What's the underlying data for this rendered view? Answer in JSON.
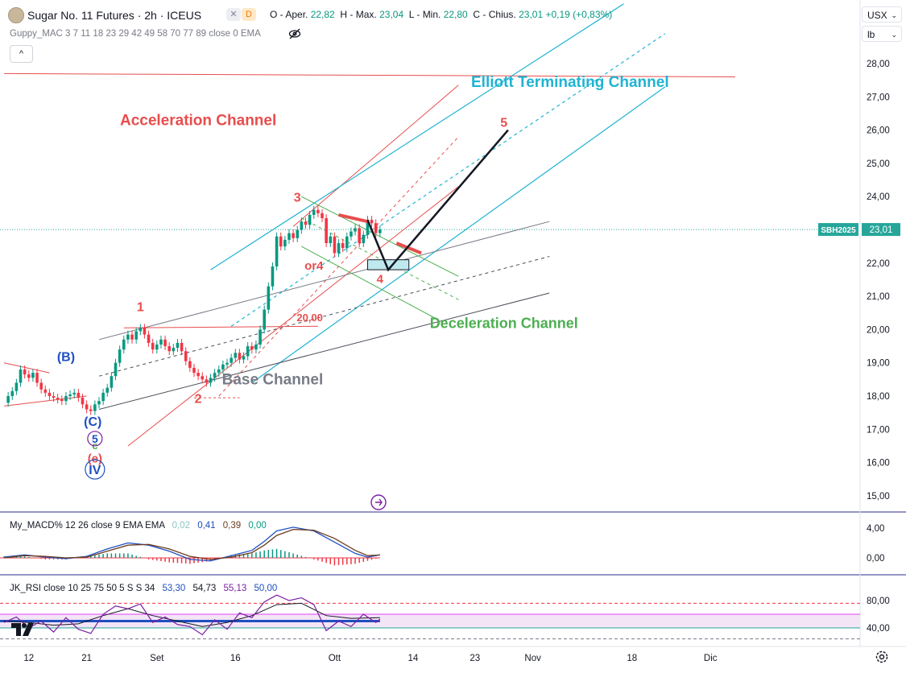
{
  "header": {
    "symbol_title": "Sugar No. 11 Futures · 2h · ICEUS",
    "flag_x": "✕",
    "flag_d": "D",
    "ohlc_open_label": "O - Aper.",
    "ohlc_open": "22,82",
    "ohlc_high_label": "H - Max.",
    "ohlc_high": "23,04",
    "ohlc_low_label": "L - Min.",
    "ohlc_low": "22,80",
    "ohlc_close_label": "C - Chius.",
    "ohlc_close": "23,01",
    "ohlc_change": "+0,19 (+0,83%)",
    "indicator": "Guppy_MAC 3 7 11 18 23 29 42 49 58 70 77 89 close 0 EMA",
    "collapse_icon": "^"
  },
  "selectors": {
    "currency": "USX",
    "unit": "lb",
    "chevron": "⌄"
  },
  "macd_pane": {
    "label": "My_MACD% 12 26 close 9 EMA EMA",
    "values": [
      "0,02",
      "0,41",
      "0,39",
      "0,00"
    ],
    "value_colors": [
      "#89c4bd",
      "#1e4fc2",
      "#6d3b1e",
      "#089981"
    ]
  },
  "rsi_pane": {
    "label": "JK_RSI close 10 25 75 50 5 S S 34",
    "values": [
      "53,30",
      "54,73",
      "55,13",
      "50,00"
    ],
    "value_colors": [
      "#1e4fc2",
      "#131722",
      "#7b1fa2",
      "#1e4fc2"
    ]
  },
  "colors": {
    "candle_up": "#089981",
    "candle_down": "#f23645",
    "accel": "#e84d4d",
    "elliott": "#1fb3d2",
    "decel": "#4caf50",
    "base": "#787b86",
    "wave_label": "#e84d4d",
    "blue_label": "#1e4fc2",
    "last_price": "#26a69a"
  },
  "chart_data": {
    "type": "candlestick",
    "title": "Sugar No. 11 Futures · 2h · ICEUS",
    "ylabel": "",
    "y_ticks": [
      "28,00",
      "27,00",
      "26,00",
      "25,00",
      "24,00",
      "23,00",
      "22,00",
      "21,00",
      "20,00",
      "19,00",
      "18,00",
      "17,00",
      "16,00",
      "15,00"
    ],
    "y_tick_values": [
      28,
      27,
      26,
      25,
      24,
      23,
      22,
      21,
      20,
      19,
      18,
      17,
      16,
      15
    ],
    "x_ticks": [
      "12",
      "21",
      "Set",
      "16",
      "Ott",
      "14",
      "23",
      "Nov",
      "18",
      "Dic"
    ],
    "x_tick_idx": [
      6,
      20,
      37,
      56,
      80,
      99,
      114,
      128,
      152,
      171
    ],
    "last_price": {
      "symbol": "SBH2025",
      "value": "23,01",
      "num": 23.01
    },
    "price_path": [
      [
        0,
        17.8
      ],
      [
        1,
        18.0
      ],
      [
        2,
        18.15
      ],
      [
        3,
        18.4
      ],
      [
        4,
        18.8
      ],
      [
        5,
        18.65
      ],
      [
        6,
        18.55
      ],
      [
        7,
        18.7
      ],
      [
        8,
        18.4
      ],
      [
        9,
        18.2
      ],
      [
        10,
        18.1
      ],
      [
        11,
        18.0
      ],
      [
        12,
        17.95
      ],
      [
        13,
        17.9
      ],
      [
        14,
        17.85
      ],
      [
        15,
        18.0
      ],
      [
        16,
        18.05
      ],
      [
        17,
        18.1
      ],
      [
        18,
        17.95
      ],
      [
        19,
        17.75
      ],
      [
        20,
        17.6
      ],
      [
        21,
        17.55
      ],
      [
        22,
        17.75
      ],
      [
        23,
        17.85
      ],
      [
        24,
        18.1
      ],
      [
        25,
        18.25
      ],
      [
        26,
        18.6
      ],
      [
        27,
        19.0
      ],
      [
        28,
        19.4
      ],
      [
        29,
        19.7
      ],
      [
        30,
        19.85
      ],
      [
        31,
        19.7
      ],
      [
        32,
        19.95
      ],
      [
        33,
        20.05
      ],
      [
        34,
        19.85
      ],
      [
        35,
        19.6
      ],
      [
        36,
        19.4
      ],
      [
        37,
        19.55
      ],
      [
        38,
        19.7
      ],
      [
        39,
        19.5
      ],
      [
        40,
        19.35
      ],
      [
        41,
        19.45
      ],
      [
        42,
        19.6
      ],
      [
        43,
        19.35
      ],
      [
        44,
        19.05
      ],
      [
        45,
        18.85
      ],
      [
        46,
        18.7
      ],
      [
        47,
        18.6
      ],
      [
        48,
        18.5
      ],
      [
        49,
        18.4
      ],
      [
        50,
        18.55
      ],
      [
        51,
        18.7
      ],
      [
        52,
        18.8
      ],
      [
        53,
        18.95
      ],
      [
        54,
        19.0
      ],
      [
        55,
        19.15
      ],
      [
        56,
        19.3
      ],
      [
        57,
        19.1
      ],
      [
        58,
        19.2
      ],
      [
        59,
        19.5
      ],
      [
        60,
        19.4
      ],
      [
        61,
        19.55
      ],
      [
        62,
        20.0
      ],
      [
        63,
        20.6
      ],
      [
        64,
        21.3
      ],
      [
        65,
        21.9
      ],
      [
        66,
        22.8
      ],
      [
        67,
        22.5
      ],
      [
        68,
        22.7
      ],
      [
        69,
        22.9
      ],
      [
        70,
        22.75
      ],
      [
        71,
        23.0
      ],
      [
        72,
        23.25
      ],
      [
        73,
        23.15
      ],
      [
        74,
        23.45
      ],
      [
        75,
        23.6
      ],
      [
        76,
        23.5
      ],
      [
        77,
        23.35
      ],
      [
        78,
        22.6
      ],
      [
        79,
        22.8
      ],
      [
        80,
        22.3
      ],
      [
        81,
        22.6
      ],
      [
        82,
        22.45
      ],
      [
        83,
        22.8
      ],
      [
        84,
        22.95
      ],
      [
        85,
        23.05
      ],
      [
        86,
        22.6
      ],
      [
        87,
        22.85
      ],
      [
        88,
        23.3
      ],
      [
        89,
        23.2
      ],
      [
        90,
        22.9
      ],
      [
        91,
        23.01
      ]
    ],
    "overlays": {
      "accel_upper": [
        [
          70,
          23.1
        ],
        [
          110,
          27.35
        ]
      ],
      "accel_lower": [
        [
          30,
          16.5
        ],
        [
          110,
          24.3
        ]
      ],
      "accel_mid": [
        [
          52,
          18.0
        ],
        [
          110,
          25.8
        ]
      ],
      "accel_horiz": [
        [
          0,
          27.7
        ],
        [
          177,
          27.6
        ]
      ],
      "elliott_upper": [
        [
          50,
          21.8
        ],
        [
          150,
          29.8
        ]
      ],
      "elliott_lower": [
        [
          60,
          18.4
        ],
        [
          160,
          27.3
        ]
      ],
      "elliott_mid": [
        [
          55,
          20.1
        ],
        [
          160,
          28.9
        ]
      ],
      "base_upper": [
        [
          23,
          19.7
        ],
        [
          132,
          23.25
        ]
      ],
      "base_lower": [
        [
          23,
          17.6
        ],
        [
          132,
          21.1
        ]
      ],
      "base_mid": [
        [
          23,
          18.6
        ],
        [
          132,
          22.2
        ]
      ],
      "decel_upper": [
        [
          72,
          24.0
        ],
        [
          110,
          21.6
        ]
      ],
      "decel_lower": [
        [
          72,
          22.5
        ],
        [
          105,
          20.3
        ]
      ],
      "decel_mid": [
        [
          72,
          23.35
        ],
        [
          110,
          20.9
        ]
      ],
      "wave_projection": [
        [
          88,
          23.3
        ],
        [
          93,
          21.8
        ],
        [
          122,
          26.0
        ]
      ],
      "left_triangle_top": [
        [
          0,
          19.0
        ],
        [
          11,
          18.7
        ]
      ],
      "left_triangle_bot": [
        [
          0,
          17.7
        ],
        [
          20,
          18.0
        ]
      ],
      "level_20": [
        [
          29,
          20.05
        ],
        [
          76,
          20.1
        ]
      ],
      "level_2": [
        [
          46,
          17.95
        ],
        [
          57,
          17.95
        ]
      ],
      "red_marker_1": [
        [
          81,
          23.45
        ],
        [
          88,
          23.25
        ]
      ],
      "red_marker_2": [
        [
          95,
          22.6
        ],
        [
          101,
          22.3
        ]
      ],
      "target_box": [
        [
          88,
          22.1
        ],
        [
          98,
          21.8
        ]
      ]
    },
    "annotations": [
      {
        "text": "Acceleration Channel",
        "x": 47,
        "y": 26.15,
        "color": "accel",
        "size": 19
      },
      {
        "text": "Elliott Terminating Channel",
        "x": 137,
        "y": 27.3,
        "color": "elliott",
        "size": 19
      },
      {
        "text": "Deceleration Channel",
        "x": 121,
        "y": 20.05,
        "color": "decel",
        "size": 18
      },
      {
        "text": "Base Channel",
        "x": 65,
        "y": 18.35,
        "color": "base",
        "size": 19
      },
      {
        "text": "1",
        "x": 33,
        "y": 20.55,
        "color": "wave_label",
        "size": 16
      },
      {
        "text": "2",
        "x": 47,
        "y": 17.8,
        "color": "wave_label",
        "size": 16
      },
      {
        "text": "3",
        "x": 71,
        "y": 23.85,
        "color": "wave_label",
        "size": 16
      },
      {
        "text": "or4",
        "x": 75,
        "y": 21.8,
        "color": "wave_label",
        "size": 15
      },
      {
        "text": "4",
        "x": 91,
        "y": 21.4,
        "color": "wave_label",
        "size": 15
      },
      {
        "text": "5",
        "x": 121,
        "y": 26.1,
        "color": "wave_label",
        "size": 16
      },
      {
        "text": "20,00",
        "x": 74,
        "y": 20.25,
        "color": "wave_label",
        "size": 13
      },
      {
        "text": "(B)",
        "x": 15,
        "y": 19.05,
        "color": "blue_label",
        "size": 16
      },
      {
        "text": "(C)",
        "x": 21.5,
        "y": 17.1,
        "color": "blue_label",
        "size": 16
      },
      {
        "text": "5",
        "x": 22,
        "y": 16.6,
        "color": "blue_label",
        "size": 14
      },
      {
        "text": "c",
        "x": 22,
        "y": 16.4,
        "color": "decel",
        "size": 13
      },
      {
        "text": "(e)",
        "x": 22,
        "y": 16.0,
        "color": "wave_label",
        "size": 15
      },
      {
        "text": "IV",
        "x": 22,
        "y": 15.65,
        "color": "blue_label",
        "size": 16
      }
    ],
    "macd": {
      "ticks": [
        "4,00",
        "0,00"
      ],
      "tick_values": [
        4,
        0
      ],
      "line1": [
        [
          0,
          0.1
        ],
        [
          5,
          0.4
        ],
        [
          10,
          0.1
        ],
        [
          15,
          -0.1
        ],
        [
          20,
          0.2
        ],
        [
          25,
          1.2
        ],
        [
          30,
          2.0
        ],
        [
          35,
          1.7
        ],
        [
          40,
          0.9
        ],
        [
          45,
          -0.2
        ],
        [
          50,
          -0.4
        ],
        [
          55,
          0.3
        ],
        [
          60,
          1.0
        ],
        [
          63,
          2.2
        ],
        [
          66,
          3.6
        ],
        [
          70,
          4.1
        ],
        [
          75,
          3.6
        ],
        [
          80,
          2.1
        ],
        [
          85,
          0.6
        ],
        [
          88,
          0.1
        ],
        [
          91,
          0.41
        ]
      ],
      "line2": [
        [
          0,
          0.0
        ],
        [
          5,
          0.3
        ],
        [
          10,
          0.2
        ],
        [
          15,
          0.0
        ],
        [
          20,
          0.1
        ],
        [
          25,
          0.9
        ],
        [
          30,
          1.7
        ],
        [
          35,
          1.8
        ],
        [
          40,
          1.2
        ],
        [
          45,
          0.2
        ],
        [
          50,
          -0.2
        ],
        [
          55,
          0.1
        ],
        [
          60,
          0.7
        ],
        [
          63,
          1.7
        ],
        [
          66,
          3.0
        ],
        [
          70,
          3.8
        ],
        [
          75,
          3.7
        ],
        [
          80,
          2.6
        ],
        [
          85,
          1.0
        ],
        [
          88,
          0.3
        ],
        [
          91,
          0.39
        ]
      ]
    },
    "rsi": {
      "ticks": [
        "80,00",
        "40,00"
      ],
      "tick_values": [
        80,
        40
      ],
      "upper_band": 76,
      "lower_band": 24,
      "blue_level": 50,
      "line_fast": [
        [
          0,
          48
        ],
        [
          3,
          56
        ],
        [
          6,
          40
        ],
        [
          9,
          50
        ],
        [
          12,
          34
        ],
        [
          15,
          55
        ],
        [
          18,
          38
        ],
        [
          21,
          32
        ],
        [
          24,
          60
        ],
        [
          27,
          72
        ],
        [
          30,
          68
        ],
        [
          33,
          75
        ],
        [
          36,
          48
        ],
        [
          39,
          56
        ],
        [
          42,
          45
        ],
        [
          45,
          42
        ],
        [
          48,
          30
        ],
        [
          51,
          52
        ],
        [
          54,
          38
        ],
        [
          57,
          62
        ],
        [
          60,
          55
        ],
        [
          63,
          78
        ],
        [
          66,
          88
        ],
        [
          69,
          80
        ],
        [
          72,
          84
        ],
        [
          75,
          74
        ],
        [
          78,
          36
        ],
        [
          81,
          50
        ],
        [
          84,
          42
        ],
        [
          87,
          60
        ],
        [
          90,
          48
        ],
        [
          91,
          53
        ]
      ],
      "line_slow": [
        [
          0,
          50
        ],
        [
          6,
          48
        ],
        [
          12,
          44
        ],
        [
          18,
          46
        ],
        [
          24,
          58
        ],
        [
          30,
          68
        ],
        [
          36,
          58
        ],
        [
          42,
          50
        ],
        [
          48,
          42
        ],
        [
          54,
          48
        ],
        [
          60,
          58
        ],
        [
          66,
          74
        ],
        [
          72,
          76
        ],
        [
          78,
          58
        ],
        [
          84,
          54
        ],
        [
          91,
          55
        ]
      ]
    }
  }
}
